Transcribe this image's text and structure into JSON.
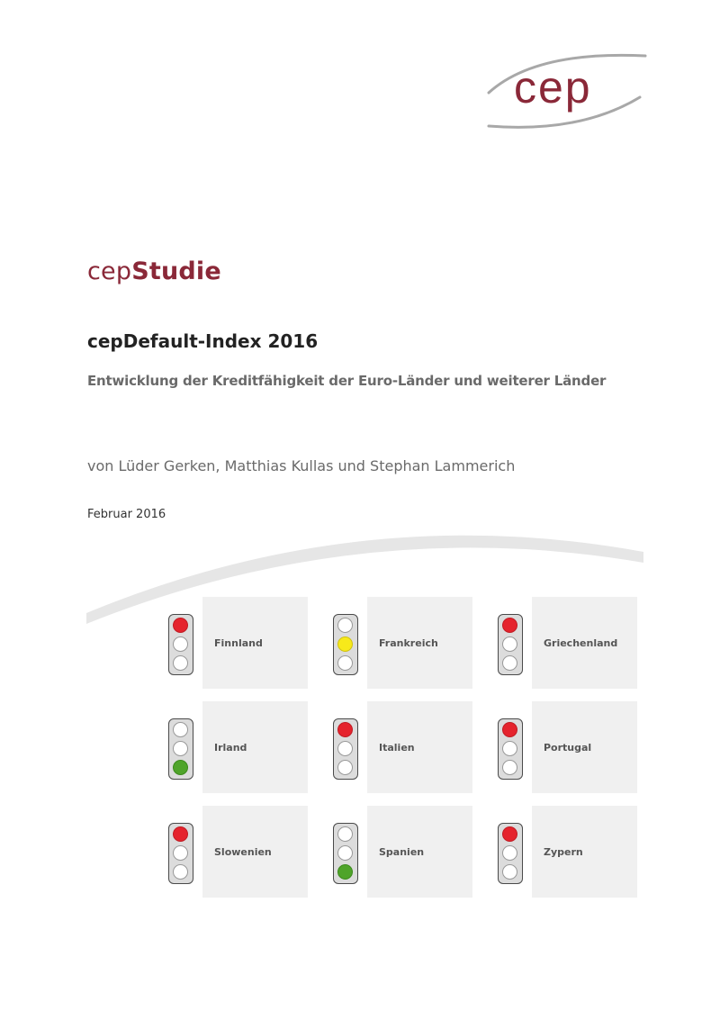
{
  "logo": {
    "text": "cep"
  },
  "series": {
    "prefix": "cep",
    "name": "Studie"
  },
  "title": "cepDefault-Index 2016",
  "subtitle": "Entwicklung  der Kreditfähigkeit der Euro-Länder und weiterer Länder",
  "authors": "von Lüder Gerken, Matthias Kullas und Stephan Lammerich",
  "date": "Februar 2016",
  "colors": {
    "brand": "#8a2838",
    "red": "#e5232d",
    "yellow": "#f7e91a",
    "green": "#4fa42a"
  },
  "countries": [
    {
      "name": "Finnland",
      "light": "red"
    },
    {
      "name": "Frankreich",
      "light": "yellow"
    },
    {
      "name": "Griechenland",
      "light": "red"
    },
    {
      "name": "Irland",
      "light": "green"
    },
    {
      "name": "Italien",
      "light": "red"
    },
    {
      "name": "Portugal",
      "light": "red"
    },
    {
      "name": "Slowenien",
      "light": "red"
    },
    {
      "name": "Spanien",
      "light": "green"
    },
    {
      "name": "Zypern",
      "light": "red"
    }
  ]
}
